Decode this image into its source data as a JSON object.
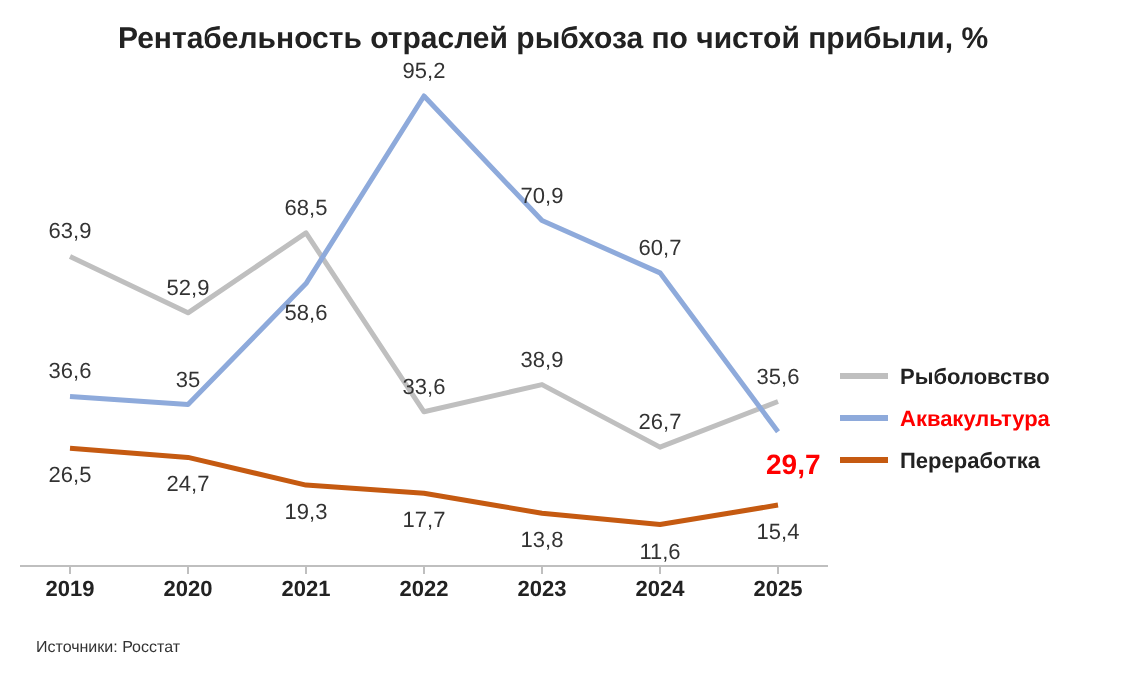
{
  "chart_data": {
    "type": "line",
    "title": "Рентабельность отраслей рыбхоза по чистой прибыли, %",
    "categories": [
      "2019",
      "2020",
      "2021",
      "2022",
      "2023",
      "2024",
      "2025"
    ],
    "series": [
      {
        "name": "Рыболовство",
        "color": "#bfbfbf",
        "values": [
          63.9,
          52.9,
          68.5,
          33.6,
          38.9,
          26.7,
          35.6
        ],
        "value_labels": [
          "63,9",
          "52,9",
          "68,5",
          "33,6",
          "38,9",
          "26,7",
          "35,6"
        ]
      },
      {
        "name": "Аквакультура",
        "color": "#8eaadb",
        "values": [
          36.6,
          35,
          58.6,
          95.2,
          70.9,
          60.7,
          29.7
        ],
        "value_labels": [
          "36,6",
          "35",
          "58,6",
          "95,2",
          "70,9",
          "60,7",
          "29,7"
        ]
      },
      {
        "name": "Переработка",
        "color": "#c55a11",
        "values": [
          26.5,
          24.7,
          19.3,
          17.7,
          13.8,
          11.6,
          15.4
        ],
        "value_labels": [
          "26,5",
          "24,7",
          "19,3",
          "17,7",
          "13,8",
          "11,6",
          "15,4"
        ]
      }
    ],
    "legend": "right",
    "marker": "none",
    "line_style": "solid",
    "grid": false,
    "annotations": [
      "Источники: Росстат"
    ]
  }
}
